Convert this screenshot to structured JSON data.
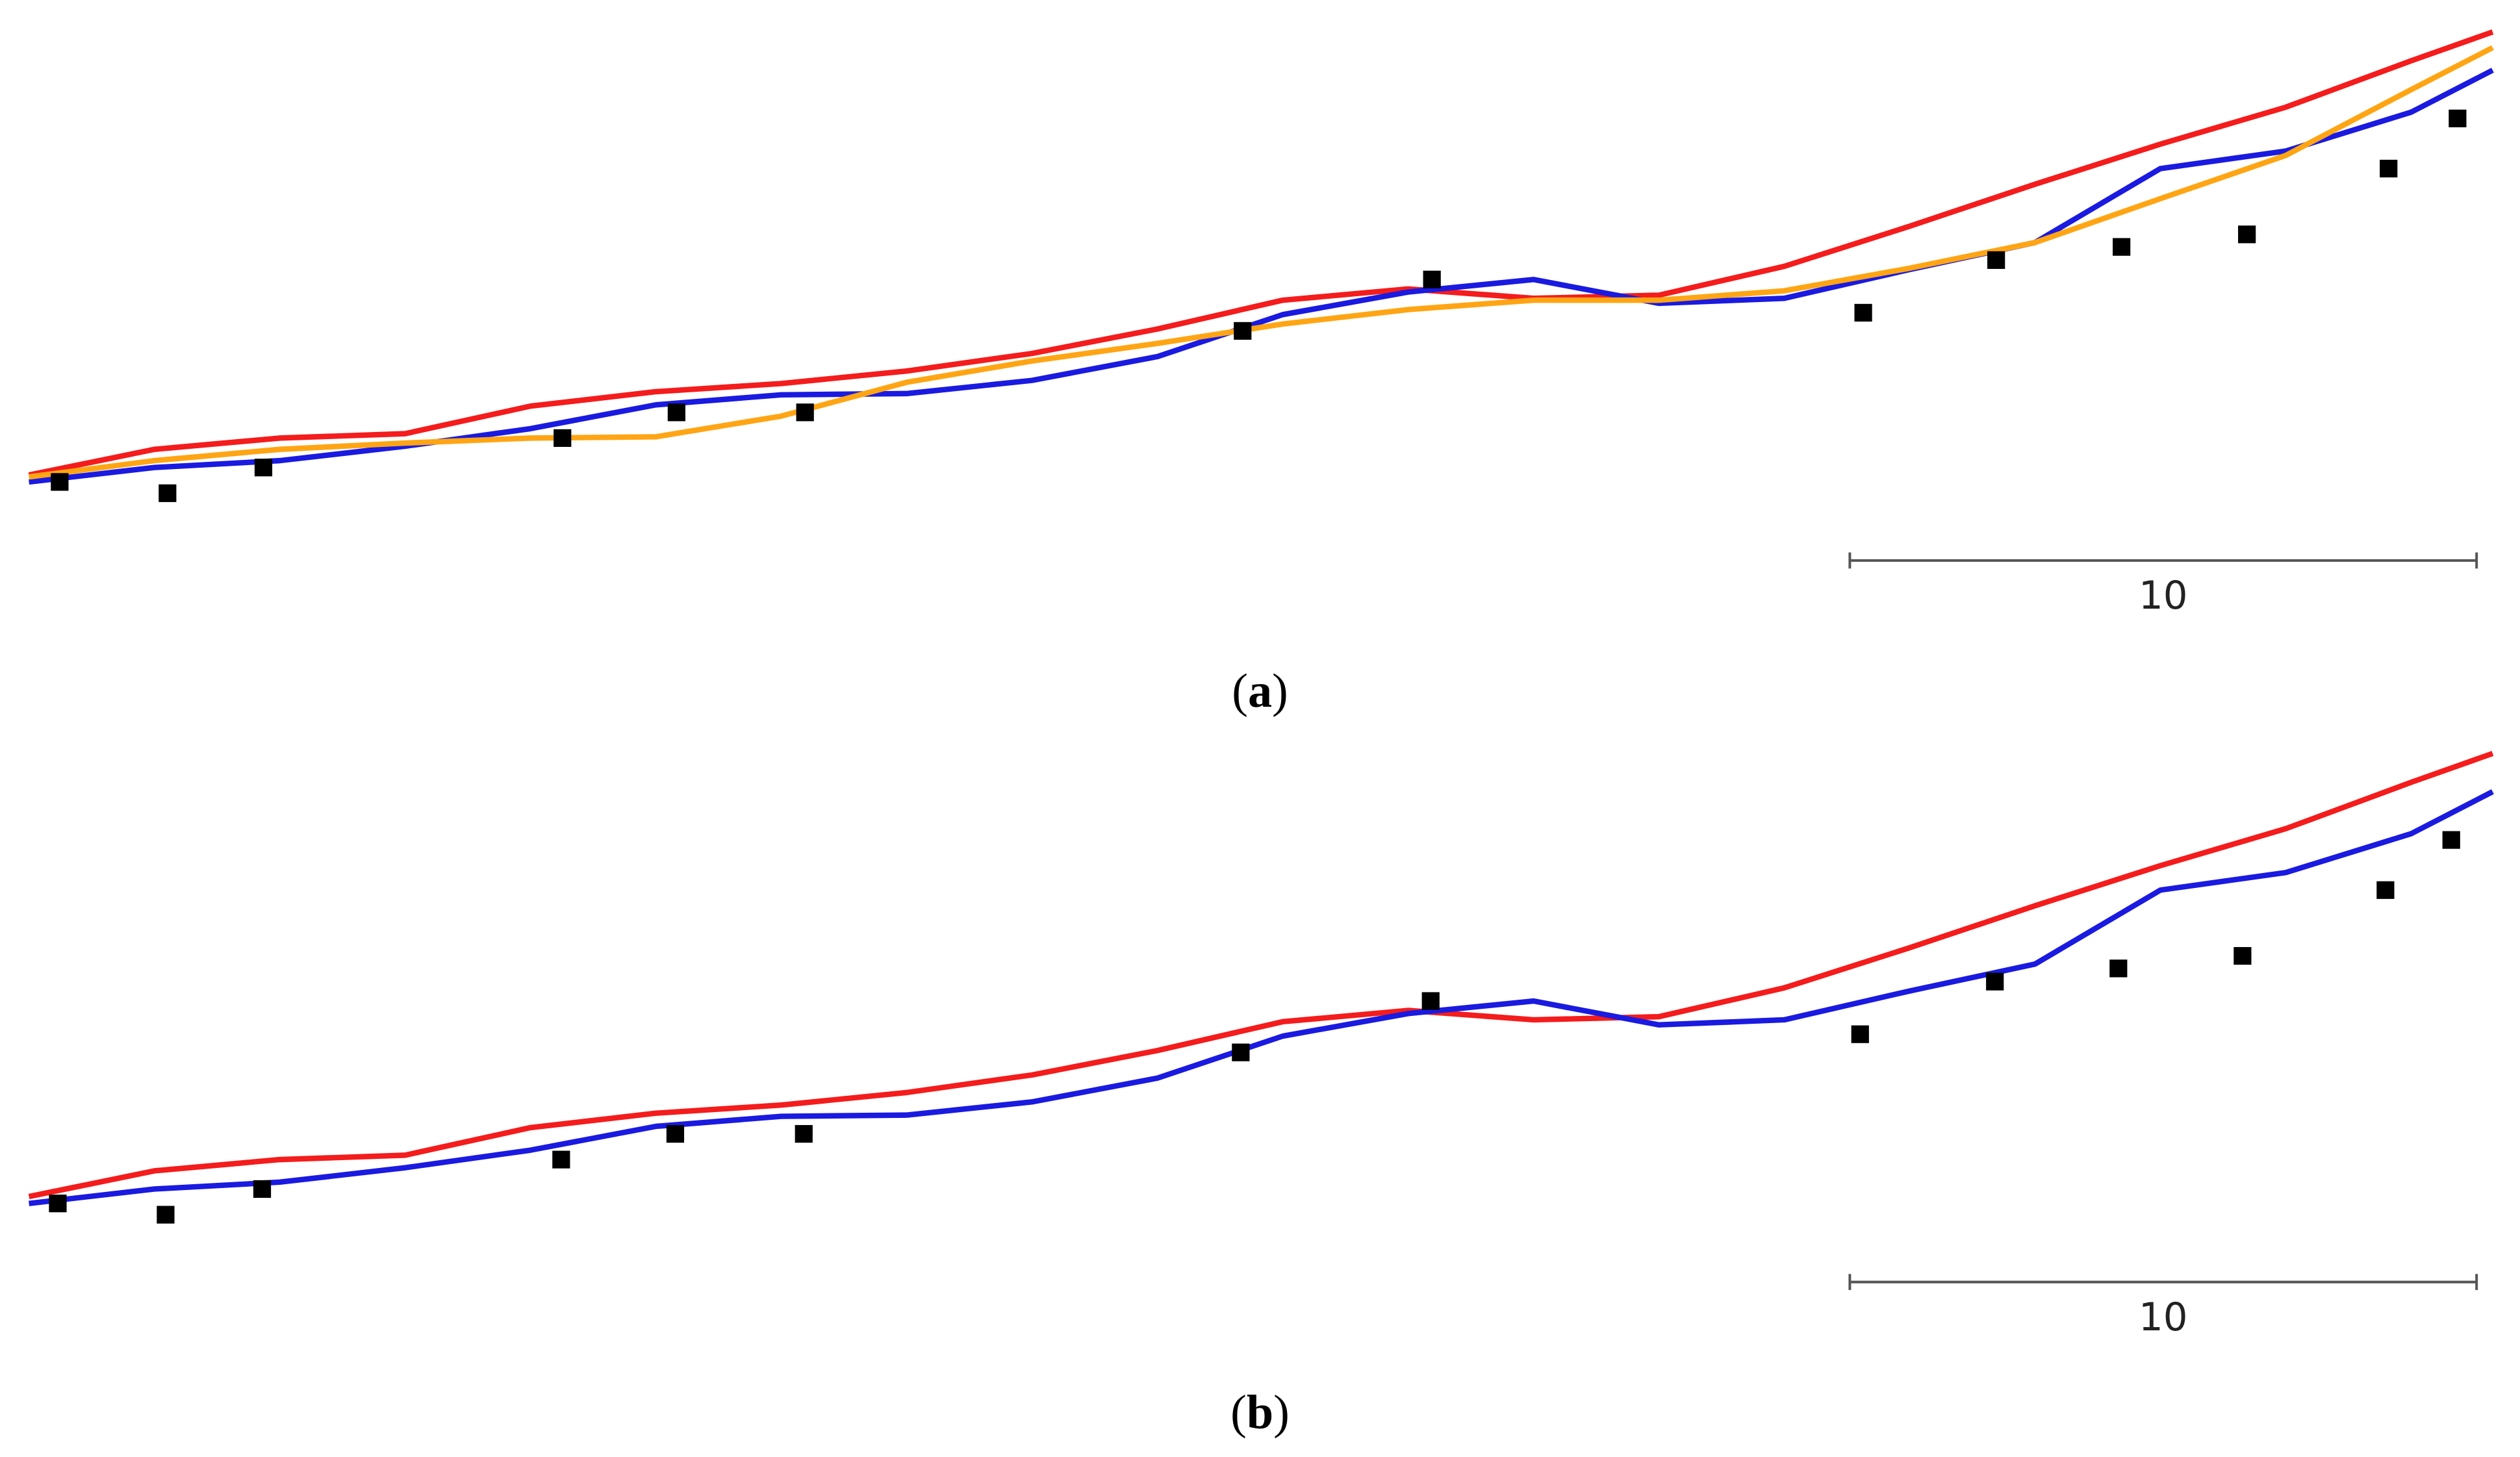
{
  "chart_data": [
    {
      "type": "line",
      "caption": "(a)",
      "x": [
        0,
        2,
        4,
        6,
        8,
        10,
        12,
        14,
        16,
        18,
        20,
        22,
        24,
        26,
        28,
        30,
        32,
        34,
        36,
        38,
        39.3
      ],
      "series": [
        {
          "color": "#f41c1c",
          "values": [
            0.62,
            1.03,
            1.21,
            1.28,
            1.72,
            1.95,
            2.08,
            2.28,
            2.56,
            2.95,
            3.41,
            3.59,
            3.44,
            3.49,
            3.95,
            4.59,
            5.26,
            5.9,
            6.49,
            7.23,
            7.69
          ]
        },
        {
          "color": "#1a1ae0",
          "values": [
            0.51,
            0.74,
            0.85,
            1.08,
            1.36,
            1.74,
            1.9,
            1.92,
            2.13,
            2.51,
            3.18,
            3.54,
            3.74,
            3.36,
            3.44,
            3.9,
            4.33,
            5.51,
            5.79,
            6.41,
            7.08
          ]
        },
        {
          "color": "#ffa514",
          "values": [
            0.59,
            0.85,
            1.03,
            1.13,
            1.21,
            1.23,
            1.56,
            2.1,
            2.44,
            2.72,
            3.03,
            3.26,
            3.41,
            3.41,
            3.56,
            3.92,
            4.33,
            5.03,
            5.72,
            6.77,
            7.44
          ]
        }
      ],
      "points": {
        "color": "#000000",
        "x": [
          0.49,
          2.21,
          3.74,
          8.51,
          10.33,
          12.38,
          19.36,
          22.38,
          29.26,
          31.38,
          33.38,
          35.38,
          37.64,
          38.74
        ],
        "y": [
          0.51,
          0.33,
          0.74,
          1.21,
          1.62,
          1.62,
          2.92,
          3.74,
          3.21,
          4.05,
          4.26,
          4.46,
          5.51,
          6.31
        ]
      },
      "scale_bar": 10,
      "xlim": [
        0,
        39.3
      ],
      "ylim": [
        0,
        8.2
      ]
    },
    {
      "type": "line",
      "caption": "(b)",
      "x": [
        0,
        2,
        4,
        6,
        8,
        10,
        12,
        14,
        16,
        18,
        20,
        22,
        24,
        26,
        28,
        30,
        32,
        34,
        36,
        38,
        39.3
      ],
      "series": [
        {
          "color": "#f41c1c",
          "values": [
            0.62,
            1.03,
            1.21,
            1.28,
            1.72,
            1.95,
            2.08,
            2.28,
            2.56,
            2.95,
            3.41,
            3.59,
            3.44,
            3.49,
            3.95,
            4.59,
            5.26,
            5.9,
            6.49,
            7.23,
            7.69
          ]
        },
        {
          "color": "#1a1ae0",
          "values": [
            0.51,
            0.74,
            0.85,
            1.08,
            1.36,
            1.74,
            1.9,
            1.92,
            2.13,
            2.51,
            3.18,
            3.54,
            3.74,
            3.36,
            3.44,
            3.9,
            4.33,
            5.51,
            5.79,
            6.41,
            7.08
          ]
        }
      ],
      "points": {
        "color": "#000000",
        "x": [
          0.46,
          2.18,
          3.72,
          8.49,
          10.31,
          12.36,
          19.33,
          22.36,
          29.21,
          31.36,
          33.33,
          35.31,
          37.59,
          38.64
        ],
        "y": [
          0.51,
          0.33,
          0.74,
          1.21,
          1.62,
          1.62,
          2.92,
          3.74,
          3.21,
          4.05,
          4.26,
          4.46,
          5.51,
          6.31
        ]
      },
      "scale_bar": 10,
      "xlim": [
        0,
        39.3
      ],
      "ylim": [
        0,
        8.2
      ]
    }
  ]
}
